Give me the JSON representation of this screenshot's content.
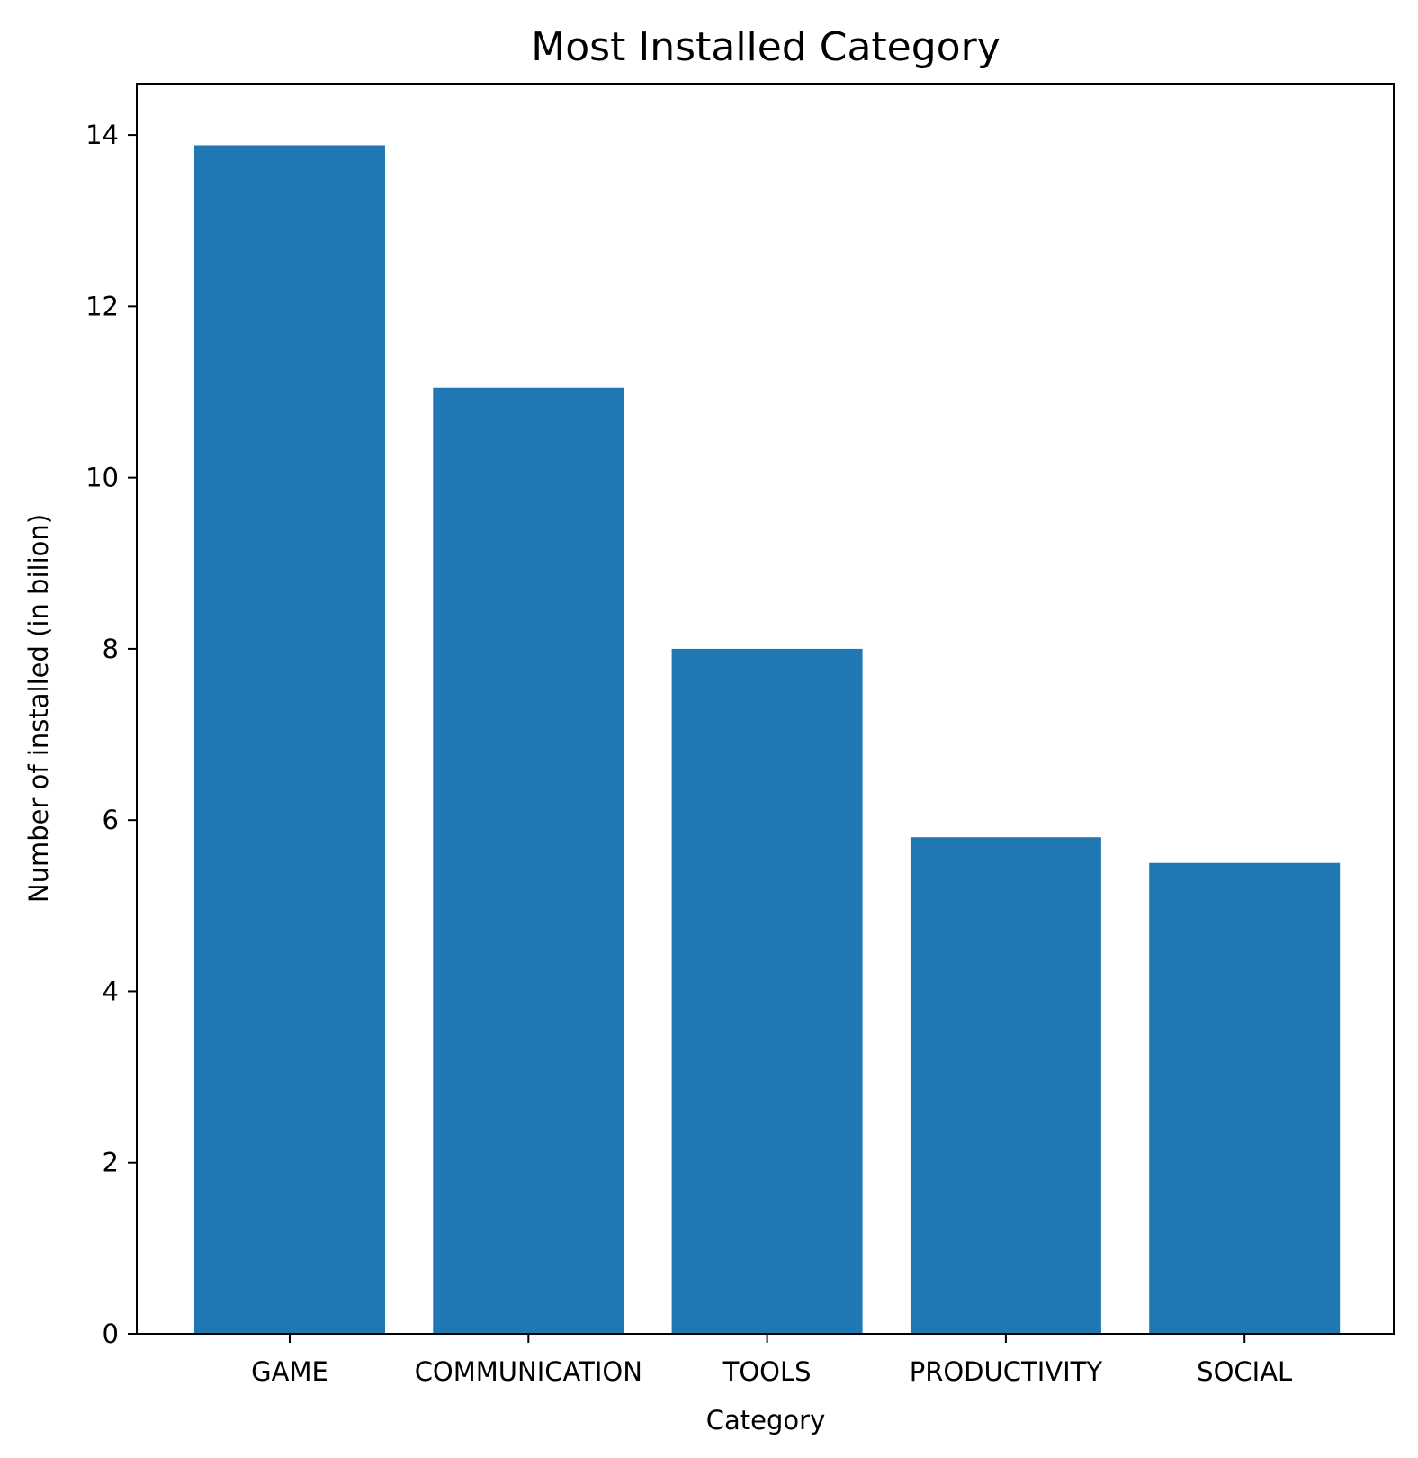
{
  "chart_data": {
    "type": "bar",
    "title": "Most Installed Category",
    "xlabel": "Category",
    "ylabel": "Number of installed (in bilion)",
    "categories": [
      "GAME",
      "COMMUNICATION",
      "TOOLS",
      "PRODUCTIVITY",
      "SOCIAL"
    ],
    "values": [
      13.88,
      11.05,
      8.0,
      5.8,
      5.5
    ],
    "ylim": [
      0,
      14.6
    ],
    "yticks": [
      "0",
      "2",
      "4",
      "6",
      "8",
      "10",
      "12",
      "14"
    ],
    "grid": false,
    "legend": "none",
    "bar_color": "#1f77b4"
  }
}
